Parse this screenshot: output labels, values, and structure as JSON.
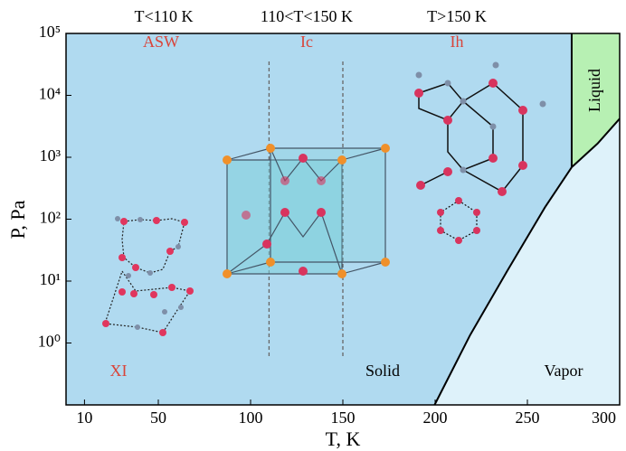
{
  "chart_data": {
    "type": "phase-diagram",
    "xlabel": "T, K",
    "ylabel": "P, Pa",
    "xlim": [
      0,
      300
    ],
    "xticks": [
      10,
      50,
      100,
      150,
      200,
      250,
      300
    ],
    "ylim": [
      0.1,
      100000
    ],
    "log_y": true,
    "yticks": [
      {
        "value": 1,
        "label": "10⁰"
      },
      {
        "value": 10,
        "label": "10¹"
      },
      {
        "value": 100,
        "label": "10²"
      },
      {
        "value": 1000,
        "label": "10³"
      },
      {
        "value": 10000,
        "label": "10⁴"
      },
      {
        "value": 100000,
        "label": "10⁵"
      }
    ],
    "headers": [
      "T<110 K",
      "110<T<150 K",
      "T>150 K"
    ],
    "dividers": [
      110,
      150
    ],
    "phases": [
      "ASW",
      "Ic",
      "Ih",
      "XI"
    ],
    "regions": [
      "Solid",
      "Vapor",
      "Liquid"
    ],
    "sublimation_curve": {
      "x": [
        199.7,
        219,
        239,
        259.5,
        274
      ],
      "y": [
        0.1,
        1.35,
        14.5,
        155,
        690
      ]
    },
    "vaporization_curve": {
      "x": [
        274,
        288,
        300
      ],
      "y": [
        690,
        1660,
        4200
      ]
    },
    "melting_line": {
      "x": [
        274,
        274
      ],
      "y": [
        690,
        100000
      ]
    },
    "colors": {
      "solid": "#b0daf0",
      "liquid": "#b7f0b3",
      "vapor": "#def2fa"
    }
  }
}
